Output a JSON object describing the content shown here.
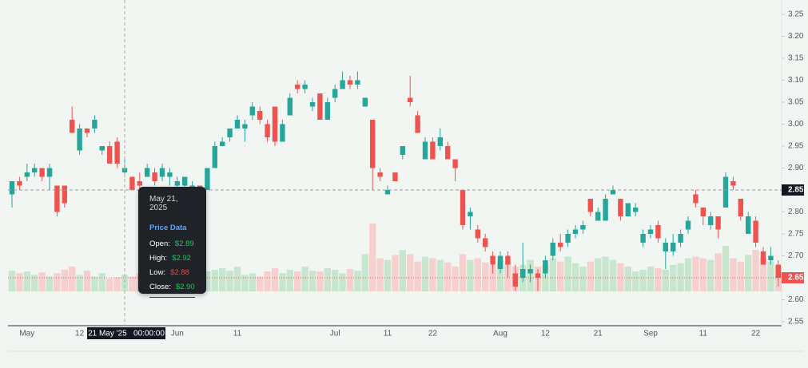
{
  "chart_data": {
    "type": "candlestick",
    "categories": [
      null,
      null,
      "May",
      null,
      null,
      null,
      null,
      null,
      null,
      "12",
      null,
      null,
      null,
      null,
      null,
      null,
      null,
      null,
      null,
      null,
      null,
      null,
      "Jun",
      null,
      null,
      null,
      null,
      null,
      null,
      null,
      "11",
      null,
      null,
      null,
      null,
      null,
      null,
      null,
      null,
      null,
      null,
      null,
      null,
      "Jul",
      null,
      null,
      null,
      null,
      null,
      null,
      "11",
      null,
      null,
      null,
      null,
      null,
      "22",
      null,
      null,
      null,
      null,
      null,
      null,
      null,
      null,
      "Aug",
      null,
      null,
      null,
      null,
      null,
      "12",
      null,
      null,
      null,
      null,
      null,
      null,
      "21",
      null,
      null,
      null,
      null,
      null,
      null,
      "Sep",
      null,
      null,
      null,
      null,
      null,
      null,
      "11",
      null,
      null,
      null,
      null,
      null,
      null,
      "22",
      null,
      null,
      null
    ],
    "open": [
      2.84,
      2.87,
      2.88,
      2.89,
      2.9,
      2.88,
      2.86,
      2.86,
      3.01,
      2.94,
      2.99,
      2.99,
      2.94,
      2.95,
      2.96,
      2.89,
      2.88,
      2.87,
      2.88,
      2.89,
      2.88,
      2.88,
      2.86,
      2.86,
      2.85,
      2.86,
      2.85,
      2.9,
      2.95,
      2.97,
      2.99,
      2.99,
      3.02,
      3.03,
      3.0,
      3.04,
      2.96,
      3.02,
      3.09,
      3.08,
      3.04,
      3.07,
      3.01,
      3.06,
      3.08,
      3.1,
      3.09,
      3.04,
      3.01,
      2.89,
      2.84,
      2.89,
      2.93,
      3.06,
      3.02,
      2.92,
      2.96,
      2.95,
      2.95,
      2.92,
      2.85,
      2.79,
      2.76,
      2.74,
      2.7,
      2.67,
      2.7,
      2.66,
      2.65,
      2.66,
      2.66,
      2.66,
      2.7,
      2.73,
      2.73,
      2.75,
      2.76,
      2.83,
      2.78,
      2.78,
      2.84,
      2.83,
      2.79,
      2.8,
      2.73,
      2.75,
      2.77,
      2.71,
      2.71,
      2.73,
      2.76,
      2.84,
      2.81,
      2.77,
      2.79,
      2.81,
      2.87,
      2.83,
      2.75,
      2.78,
      2.71,
      2.69,
      2.68
    ],
    "high": [
      2.87,
      2.88,
      2.91,
      2.91,
      2.9,
      2.91,
      2.86,
      2.86,
      3.04,
      3.0,
      2.99,
      3.02,
      2.95,
      2.96,
      2.97,
      2.92,
      2.88,
      2.89,
      2.91,
      2.9,
      2.91,
      2.9,
      2.88,
      2.88,
      2.87,
      2.86,
      2.9,
      2.96,
      2.97,
      2.99,
      3.02,
      3.01,
      3.05,
      3.04,
      3.01,
      3.04,
      3.01,
      3.07,
      3.1,
      3.1,
      3.06,
      3.07,
      3.06,
      3.09,
      3.12,
      3.11,
      3.12,
      3.06,
      3.01,
      2.9,
      2.86,
      2.89,
      2.95,
      3.11,
      3.03,
      2.97,
      2.97,
      2.99,
      2.96,
      2.92,
      2.85,
      2.81,
      2.77,
      2.75,
      2.71,
      2.71,
      2.71,
      2.68,
      2.73,
      2.68,
      2.67,
      2.7,
      2.74,
      2.75,
      2.76,
      2.77,
      2.78,
      2.83,
      2.81,
      2.84,
      2.86,
      2.83,
      2.82,
      2.82,
      2.76,
      2.77,
      2.78,
      2.74,
      2.75,
      2.76,
      2.79,
      2.85,
      2.81,
      2.8,
      2.79,
      2.89,
      2.88,
      2.83,
      2.8,
      2.79,
      2.72,
      2.72,
      2.69
    ],
    "low": [
      2.81,
      2.85,
      2.87,
      2.88,
      2.87,
      2.85,
      2.79,
      2.81,
      2.98,
      2.93,
      2.97,
      2.98,
      2.93,
      2.91,
      2.9,
      2.88,
      2.85,
      2.85,
      2.88,
      2.86,
      2.87,
      2.86,
      2.85,
      2.85,
      2.84,
      2.84,
      2.85,
      2.9,
      2.95,
      2.96,
      2.99,
      2.96,
      3.01,
      3.0,
      2.96,
      2.95,
      2.96,
      3.02,
      3.07,
      3.07,
      3.03,
      3.01,
      3.01,
      3.05,
      3.08,
      3.08,
      3.08,
      3.04,
      2.85,
      2.87,
      2.84,
      2.87,
      2.92,
      3.04,
      2.98,
      2.92,
      2.92,
      2.94,
      2.92,
      2.87,
      2.76,
      2.76,
      2.73,
      2.71,
      2.66,
      2.66,
      2.65,
      2.62,
      2.64,
      2.64,
      2.62,
      2.65,
      2.69,
      2.71,
      2.72,
      2.74,
      2.75,
      2.79,
      2.78,
      2.78,
      2.84,
      2.78,
      2.79,
      2.79,
      2.72,
      2.74,
      2.73,
      2.67,
      2.7,
      2.72,
      2.75,
      2.81,
      2.77,
      2.76,
      2.74,
      2.81,
      2.85,
      2.78,
      2.75,
      2.72,
      2.68,
      2.68,
      2.63
    ],
    "close": [
      2.87,
      2.86,
      2.89,
      2.9,
      2.88,
      2.9,
      2.8,
      2.82,
      2.98,
      2.99,
      2.98,
      3.01,
      2.95,
      2.91,
      2.91,
      2.9,
      2.85,
      2.86,
      2.9,
      2.87,
      2.9,
      2.89,
      2.87,
      2.88,
      2.86,
      2.85,
      2.9,
      2.95,
      2.96,
      2.99,
      3.01,
      3.0,
      3.04,
      3.01,
      2.97,
      2.96,
      3.0,
      3.06,
      3.08,
      3.09,
      3.05,
      3.01,
      3.05,
      3.08,
      3.1,
      3.09,
      3.1,
      3.06,
      2.9,
      2.88,
      2.85,
      2.87,
      2.95,
      3.05,
      2.98,
      2.96,
      2.92,
      2.97,
      2.92,
      2.9,
      2.77,
      2.8,
      2.74,
      2.72,
      2.68,
      2.7,
      2.68,
      2.63,
      2.67,
      2.67,
      2.65,
      2.69,
      2.73,
      2.72,
      2.75,
      2.76,
      2.77,
      2.8,
      2.8,
      2.83,
      2.85,
      2.79,
      2.82,
      2.81,
      2.75,
      2.76,
      2.74,
      2.73,
      2.73,
      2.75,
      2.78,
      2.82,
      2.79,
      2.79,
      2.76,
      2.88,
      2.86,
      2.79,
      2.79,
      2.73,
      2.68,
      2.7,
      2.65
    ],
    "volume": [
      25,
      22,
      24,
      20,
      23,
      18,
      22,
      26,
      30,
      20,
      25,
      18,
      22,
      15,
      17,
      20,
      18,
      22,
      16,
      19,
      17,
      15,
      14,
      18,
      16,
      20,
      24,
      26,
      28,
      25,
      30,
      20,
      22,
      18,
      24,
      28,
      22,
      26,
      24,
      30,
      25,
      24,
      28,
      26,
      22,
      27,
      25,
      45,
      82,
      40,
      38,
      44,
      50,
      45,
      36,
      42,
      40,
      38,
      35,
      30,
      45,
      38,
      40,
      35,
      32,
      38,
      34,
      30,
      32,
      38,
      30,
      32,
      40,
      36,
      42,
      34,
      30,
      36,
      40,
      42,
      38,
      34,
      30,
      24,
      26,
      30,
      28,
      26,
      32,
      34,
      40,
      42,
      40,
      38,
      46,
      55,
      40,
      36,
      44,
      50,
      42,
      36,
      30
    ],
    "up_color": "#26a69a",
    "down_color": "#ef5350",
    "volume_up_color": "#c8e6cd",
    "volume_down_color": "#f6cfcf",
    "ylim": [
      2.55,
      3.25
    ],
    "yticks": [
      2.55,
      {
        "value": 2.6,
        "label": "2.60"
      },
      2.65,
      {
        "value": 2.7,
        "label": "2.70"
      },
      2.75,
      {
        "value": 2.8,
        "label": "2.80"
      },
      2.85,
      {
        "value": 2.9,
        "label": "2.90"
      },
      2.95,
      {
        "value": 3.0,
        "label": "3.00"
      },
      3.05,
      {
        "value": 3.1,
        "label": "3.10"
      },
      3.15,
      {
        "value": 3.2,
        "label": "3.20"
      },
      3.25
    ],
    "grid": false,
    "crosshair": {
      "index": 15,
      "price": 2.85,
      "time_label": "21 May '25   00:00:00"
    },
    "tooltip": {
      "date": "May 21, 2025",
      "heading": "Price Data",
      "rows": [
        {
          "label": "Open:",
          "value": "$2.89"
        },
        {
          "label": "High:",
          "value": "$2.92"
        },
        {
          "label": "Low:",
          "value": "$2.88"
        },
        {
          "label": "Close:",
          "value": "$2.90"
        }
      ]
    }
  }
}
